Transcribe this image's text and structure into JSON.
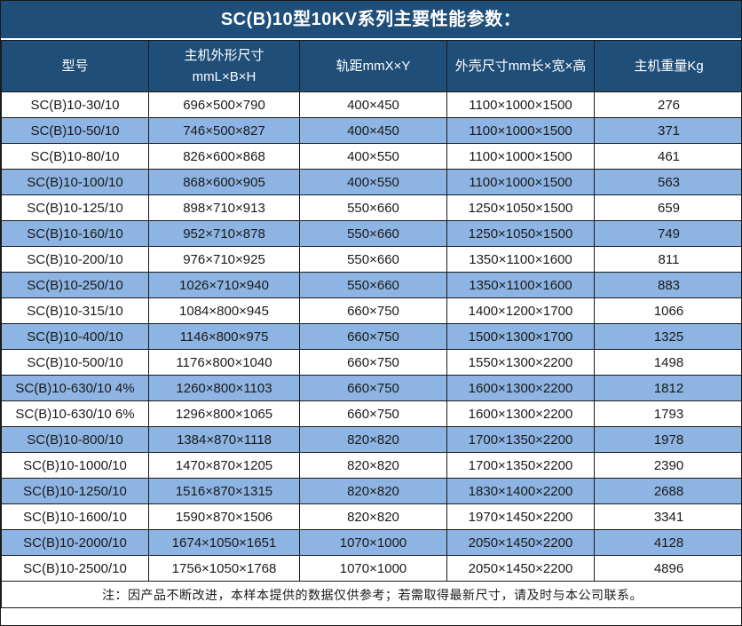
{
  "title": "SC(B)10型10KV系列主要性能参数：",
  "colors": {
    "header_bg": "#1f4e79",
    "alt_row_bg": "#8db4e2",
    "row_bg": "#ffffff",
    "border": "#1a1a1a",
    "header_text": "#ffffff",
    "body_text": "#1a1a1a"
  },
  "table": {
    "headers": [
      "型号",
      "主机外形尺寸\nmmL×B×H",
      "轨距mmX×Y",
      "外壳尺寸mm长×宽×高",
      "主机重量Kg"
    ],
    "rows": [
      [
        "SC(B)10-30/10",
        "696×500×790",
        "400×450",
        "1100×1000×1500",
        "276"
      ],
      [
        "SC(B)10-50/10",
        "746×500×827",
        "400×450",
        "1100×1000×1500",
        "371"
      ],
      [
        "SC(B)10-80/10",
        "826×600×868",
        "400×550",
        "1100×1000×1500",
        "461"
      ],
      [
        "SC(B)10-100/10",
        "868×600×905",
        "400×550",
        "1100×1000×1500",
        "563"
      ],
      [
        "SC(B)10-125/10",
        "898×710×913",
        "550×660",
        "1250×1050×1500",
        "659"
      ],
      [
        "SC(B)10-160/10",
        "952×710×878",
        "550×660",
        "1250×1050×1500",
        "749"
      ],
      [
        "SC(B)10-200/10",
        "976×710×925",
        "550×660",
        "1350×1100×1600",
        "811"
      ],
      [
        "SC(B)10-250/10",
        "1026×710×940",
        "550×660",
        "1350×1100×1600",
        "883"
      ],
      [
        "SC(B)10-315/10",
        "1084×800×945",
        "660×750",
        "1400×1200×1700",
        "1066"
      ],
      [
        "SC(B)10-400/10",
        "1146×800×975",
        "660×750",
        "1500×1300×1700",
        "1325"
      ],
      [
        "SC(B)10-500/10",
        "1176×800×1040",
        "660×750",
        "1550×1300×2200",
        "1498"
      ],
      [
        "SC(B)10-630/10 4%",
        "1260×800×1103",
        "660×750",
        "1600×1300×2200",
        "1812"
      ],
      [
        "SC(B)10-630/10 6%",
        "1296×800×1065",
        "660×750",
        "1600×1300×2200",
        "1793"
      ],
      [
        "SC(B)10-800/10",
        "1384×870×1118",
        "820×820",
        "1700×1350×2200",
        "1978"
      ],
      [
        "SC(B)10-1000/10",
        "1470×870×1205",
        "820×820",
        "1700×1350×2200",
        "2390"
      ],
      [
        "SC(B)10-1250/10",
        "1516×870×1315",
        "820×820",
        "1830×1400×2200",
        "2688"
      ],
      [
        "SC(B)10-1600/10",
        "1590×870×1506",
        "820×820",
        "1970×1450×2200",
        "3341"
      ],
      [
        "SC(B)10-2000/10",
        "1674×1050×1651",
        "1070×1000",
        "2050×1450×2200",
        "4128"
      ],
      [
        "SC(B)10-2500/10",
        "1756×1050×1768",
        "1070×1000",
        "2050×1450×2200",
        "4896"
      ]
    ]
  },
  "footer_note": "注：因产品不断改进，本样本提供的数据仅供参考；若需取得最新尺寸，请及时与本公司联系。"
}
